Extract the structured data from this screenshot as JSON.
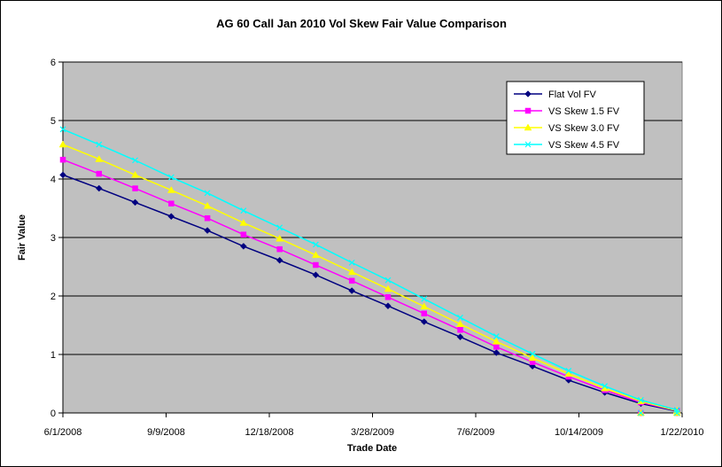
{
  "chart_data": {
    "type": "line",
    "title": "AG 60 Call Jan 2010 Vol Skew Fair Value Comparison",
    "xlabel": "Trade Date",
    "ylabel": "Fair Value",
    "x_axis_kind": "date",
    "xlim": [
      "2008-06-01",
      "2010-01-22"
    ],
    "ylim": [
      0,
      6
    ],
    "y_ticks": [
      0,
      1,
      2,
      3,
      4,
      5,
      6
    ],
    "x_tick_labels": [
      "6/1/2008",
      "9/9/2008",
      "12/18/2008",
      "3/28/2009",
      "7/6/2009",
      "10/14/2009",
      "1/22/2010"
    ],
    "x_tick_dates": [
      "2008-06-01",
      "2008-09-09",
      "2008-12-18",
      "2009-03-28",
      "2009-07-06",
      "2009-10-14",
      "2010-01-22"
    ],
    "grid": "horizontal",
    "plot_background": "#c0c0c0",
    "legend_position": "top-right",
    "x": [
      "2008-06-01",
      "2008-07-06",
      "2008-08-10",
      "2008-09-14",
      "2008-10-19",
      "2008-11-23",
      "2008-12-28",
      "2009-02-01",
      "2009-03-08",
      "2009-04-12",
      "2009-05-17",
      "2009-06-21",
      "2009-07-26",
      "2009-08-30",
      "2009-10-04",
      "2009-11-08",
      "2009-12-13",
      "2010-01-17"
    ],
    "series": [
      {
        "name": "Flat Vol FV",
        "color": "#000080",
        "marker": "diamond",
        "values": [
          4.07,
          3.84,
          3.6,
          3.36,
          3.12,
          2.85,
          2.61,
          2.36,
          2.09,
          1.83,
          1.56,
          1.3,
          1.03,
          0.8,
          0.56,
          0.35,
          0.16,
          0.03
        ]
      },
      {
        "name": "VS Skew 1.5 FV",
        "color": "#ff00ff",
        "marker": "square",
        "values": [
          4.33,
          4.09,
          3.84,
          3.58,
          3.33,
          3.05,
          2.8,
          2.53,
          2.26,
          1.98,
          1.7,
          1.42,
          1.13,
          0.87,
          0.62,
          0.39,
          0.18,
          0.04
        ]
      },
      {
        "name": "VS Skew 3.0 FV",
        "color": "#ffff00",
        "marker": "triangle",
        "values": [
          4.59,
          4.34,
          4.07,
          3.81,
          3.54,
          3.25,
          2.98,
          2.7,
          2.41,
          2.12,
          1.82,
          1.52,
          1.22,
          0.94,
          0.67,
          0.42,
          0.2,
          0.04
        ]
      },
      {
        "name": "VS Skew 4.5 FV",
        "color": "#00ffff",
        "marker": "x",
        "values": [
          4.85,
          4.59,
          4.32,
          4.03,
          3.76,
          3.46,
          3.17,
          2.88,
          2.57,
          2.27,
          1.95,
          1.63,
          1.31,
          1.01,
          0.72,
          0.46,
          0.22,
          0.05
        ]
      }
    ],
    "tail_x": [
      "2009-12-13",
      "2010-01-17"
    ],
    "tail_values": [
      0.0,
      0.0
    ]
  }
}
